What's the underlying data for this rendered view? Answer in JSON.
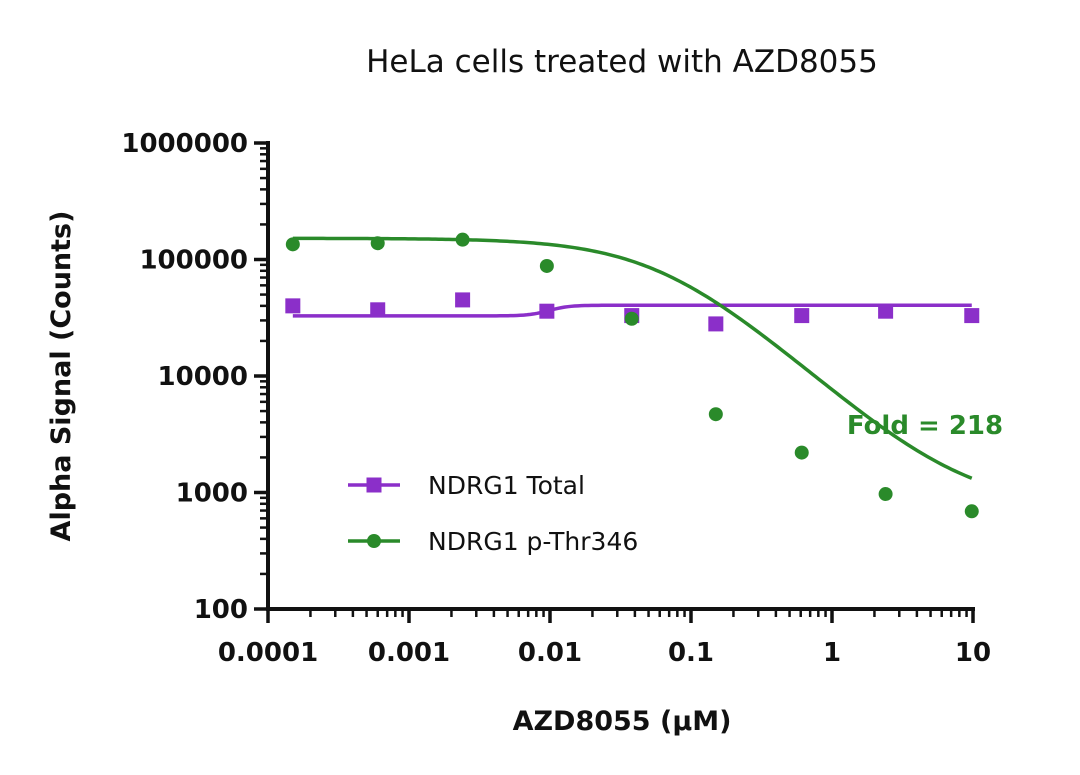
{
  "chart_data": {
    "type": "line",
    "title": "HeLa cells treated with AZD8055",
    "xlabel": "AZD8055 (µM)",
    "ylabel": "Alpha Signal (Counts)",
    "x_scale": "log",
    "y_scale": "log",
    "xlim": [
      0.0001,
      10
    ],
    "ylim": [
      100,
      1000000
    ],
    "x_tick_values": [
      0.0001,
      0.001,
      0.01,
      0.1,
      1,
      10
    ],
    "x_tick_labels": [
      "0.0001",
      "0.001",
      "0.01",
      "0.1",
      "1",
      "10"
    ],
    "y_tick_values": [
      100,
      1000,
      10000,
      100000,
      1000000
    ],
    "y_tick_labels": [
      "100",
      "1000",
      "10000",
      "100000",
      "1000000"
    ],
    "grid": false,
    "legend_position": "bottom-left",
    "series": [
      {
        "name": "NDRG1 Total",
        "marker": "square",
        "color": "#8B2FC9",
        "x": [
          0.00015,
          0.0006,
          0.0024,
          0.0095,
          0.038,
          0.15,
          0.61,
          2.4,
          9.8
        ],
        "y": [
          40000,
          37000,
          45000,
          36000,
          33000,
          28000,
          33000,
          36000,
          33000
        ],
        "fit": {
          "top": 40500,
          "bottom": 32800,
          "logEC50": -2.0,
          "hill": 6
        }
      },
      {
        "name": "NDRG1 p-Thr346",
        "marker": "circle",
        "color": "#2A8A2A",
        "x": [
          0.00015,
          0.0006,
          0.0024,
          0.0095,
          0.038,
          0.15,
          0.61,
          2.4,
          9.8
        ],
        "y": [
          135000,
          138000,
          148000,
          88000,
          31000,
          4700,
          2200,
          970,
          690
        ],
        "fit": {
          "top": 152000,
          "bottom": 740,
          "logEC50": -1.2,
          "hill": -1.1
        }
      }
    ],
    "annotations": [
      {
        "text": "Fold = 218",
        "color": "#2A8A2A"
      }
    ]
  }
}
